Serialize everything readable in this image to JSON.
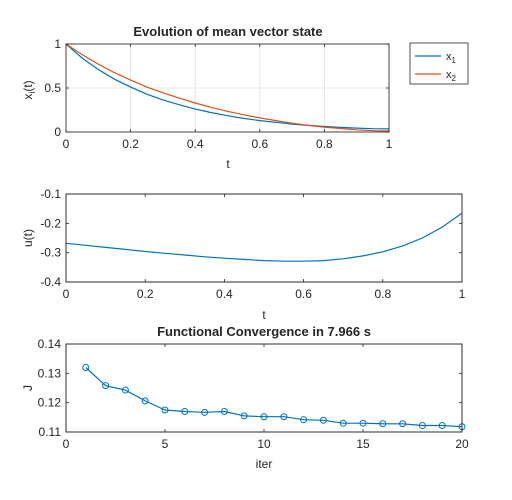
{
  "colors": {
    "blue": "#0072BD",
    "orange": "#D95319",
    "axis": "#262626",
    "grid": "#dfdfdf"
  },
  "chart_data": [
    {
      "type": "line",
      "title": "Evolution of mean vector state",
      "xlabel": "t",
      "ylabel": "x",
      "ylabel_sub": "i",
      "ylabel_suffix": "(t)",
      "xlim": [
        0,
        1
      ],
      "ylim": [
        0,
        1
      ],
      "xticks": [
        0,
        0.2,
        0.4,
        0.6,
        0.8,
        1
      ],
      "xtick_labels": [
        "0",
        "0.2",
        "0.4",
        "0.6",
        "0.8",
        "1"
      ],
      "yticks": [
        0,
        0.5,
        1
      ],
      "ytick_labels": [
        "0",
        "0.5",
        "1"
      ],
      "grid": true,
      "legend": "outside-top-right",
      "series": [
        {
          "name": "x",
          "name_sub": "1",
          "color": "#0072BD",
          "x": [
            0,
            0.05,
            0.1,
            0.15,
            0.2,
            0.25,
            0.3,
            0.35,
            0.4,
            0.45,
            0.5,
            0.55,
            0.6,
            0.65,
            0.7,
            0.75,
            0.8,
            0.85,
            0.9,
            0.95,
            1
          ],
          "y": [
            1.0,
            0.84,
            0.71,
            0.6,
            0.51,
            0.43,
            0.365,
            0.31,
            0.26,
            0.22,
            0.185,
            0.155,
            0.13,
            0.11,
            0.09,
            0.075,
            0.062,
            0.052,
            0.044,
            0.038,
            0.035
          ]
        },
        {
          "name": "x",
          "name_sub": "2",
          "color": "#D95319",
          "x": [
            0,
            0.05,
            0.1,
            0.15,
            0.2,
            0.25,
            0.3,
            0.35,
            0.4,
            0.45,
            0.5,
            0.55,
            0.6,
            0.65,
            0.7,
            0.75,
            0.8,
            0.85,
            0.9,
            0.95,
            1
          ],
          "y": [
            1.0,
            0.88,
            0.77,
            0.675,
            0.59,
            0.51,
            0.445,
            0.385,
            0.33,
            0.28,
            0.235,
            0.195,
            0.16,
            0.13,
            0.1,
            0.075,
            0.055,
            0.04,
            0.025,
            0.015,
            0.01
          ]
        }
      ]
    },
    {
      "type": "line",
      "title": "",
      "xlabel": "t",
      "ylabel": "u(t)",
      "xlim": [
        0,
        1
      ],
      "ylim": [
        -0.4,
        -0.1
      ],
      "xticks": [
        0,
        0.2,
        0.4,
        0.6,
        0.8,
        1
      ],
      "xtick_labels": [
        "0",
        "0.2",
        "0.4",
        "0.6",
        "0.8",
        "1"
      ],
      "yticks": [
        -0.4,
        -0.3,
        -0.2,
        -0.1
      ],
      "ytick_labels": [
        "-0.4",
        "-0.3",
        "-0.2",
        "-0.1"
      ],
      "grid": false,
      "series": [
        {
          "color": "#0072BD",
          "x": [
            0,
            0.05,
            0.1,
            0.15,
            0.2,
            0.25,
            0.3,
            0.35,
            0.4,
            0.45,
            0.5,
            0.55,
            0.6,
            0.65,
            0.7,
            0.75,
            0.8,
            0.85,
            0.9,
            0.95,
            1
          ],
          "y": [
            -0.268,
            -0.275,
            -0.282,
            -0.289,
            -0.296,
            -0.302,
            -0.308,
            -0.314,
            -0.319,
            -0.323,
            -0.327,
            -0.329,
            -0.329,
            -0.327,
            -0.321,
            -0.311,
            -0.297,
            -0.277,
            -0.25,
            -0.213,
            -0.165
          ]
        }
      ]
    },
    {
      "type": "line",
      "title": "Functional Convergence in 7.966 s",
      "xlabel": "iter",
      "ylabel": "J",
      "xlim": [
        0,
        20
      ],
      "ylim": [
        0.11,
        0.14
      ],
      "xticks": [
        0,
        5,
        10,
        15,
        20
      ],
      "xtick_labels": [
        "0",
        "5",
        "10",
        "15",
        "20"
      ],
      "yticks": [
        0.11,
        0.12,
        0.13,
        0.14
      ],
      "ytick_labels": [
        "0.11",
        "0.12",
        "0.13",
        "0.14"
      ],
      "grid": false,
      "markers": "circle",
      "series": [
        {
          "color": "#0072BD",
          "x": [
            1,
            2,
            3,
            4,
            5,
            6,
            7,
            8,
            9,
            10,
            11,
            12,
            13,
            14,
            15,
            16,
            17,
            18,
            19,
            20
          ],
          "y": [
            0.132,
            0.1258,
            0.1243,
            0.1206,
            0.1175,
            0.117,
            0.1167,
            0.117,
            0.1155,
            0.1152,
            0.1152,
            0.1142,
            0.114,
            0.113,
            0.113,
            0.1128,
            0.1128,
            0.1122,
            0.1122,
            0.1118
          ]
        }
      ]
    }
  ]
}
